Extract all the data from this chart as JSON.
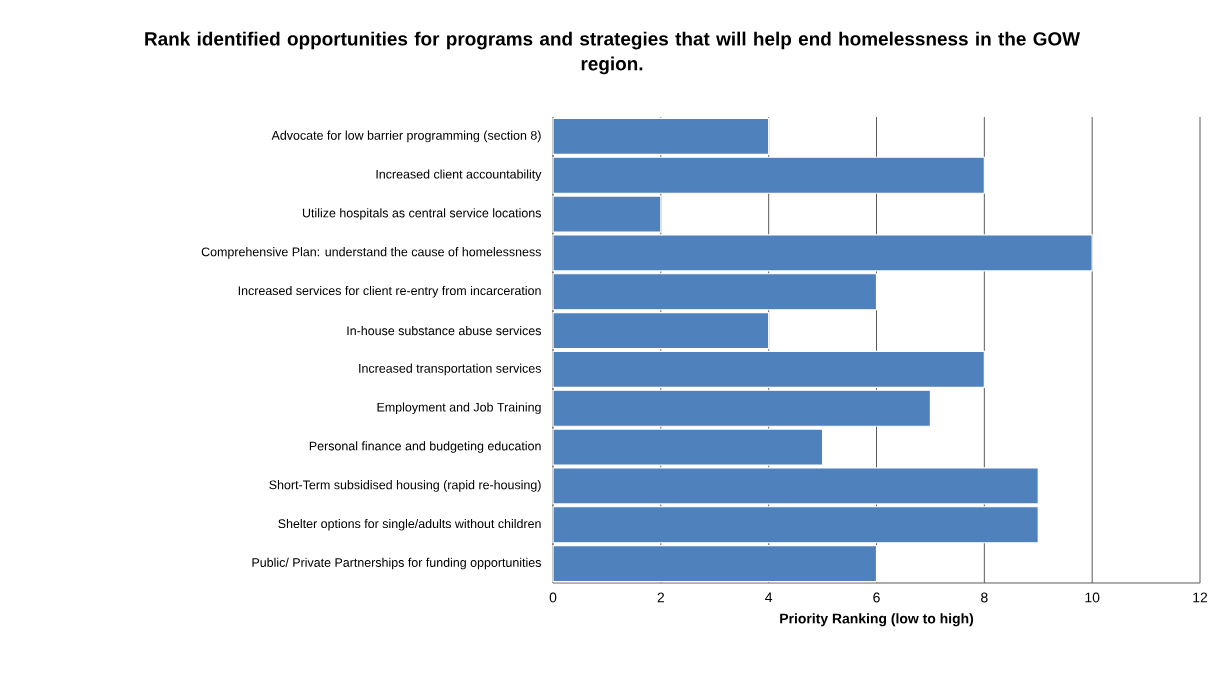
{
  "chart_data": {
    "type": "bar",
    "orientation": "horizontal",
    "title": "Rank identified opportunities for programs and strategies that will help end homelessness in the GOW region.",
    "xlabel": "Priority Ranking (low to high)",
    "categories": [
      "Advocate for low barrier programming (section 8)",
      "Increased client accountability",
      "Utilize hospitals as central service locations",
      "Comprehensive Plan: understand the cause of homelessness",
      "Increased services for client re-entry from incarceration",
      "In-house substance abuse services",
      "Increased transportation services",
      "Employment and Job Training",
      "Personal finance and budgeting education",
      "Short-Term subsidised housing (rapid re-housing)",
      "Shelter options for single/adults without children",
      "Public/ Private Partnerships for funding opportunities"
    ],
    "values": [
      4,
      8,
      2,
      10,
      6,
      4,
      8,
      7,
      5,
      9,
      9,
      6
    ],
    "color": "#4f81bd",
    "xlim": [
      0,
      12
    ],
    "xticks": [
      0,
      2,
      4,
      6,
      8,
      10,
      12
    ],
    "grid": "x"
  }
}
